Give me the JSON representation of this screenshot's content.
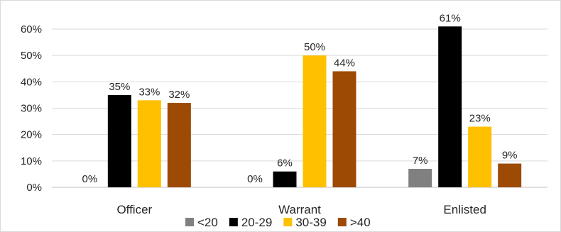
{
  "chart_data": {
    "type": "bar",
    "title": "",
    "xlabel": "",
    "ylabel": "",
    "categories": [
      "Officer",
      "Warrant",
      "Enlisted"
    ],
    "ylim": [
      0,
      60
    ],
    "yticks": [
      "0%",
      "10%",
      "20%",
      "30%",
      "40%",
      "50%",
      "60%"
    ],
    "grid": true,
    "legend_position": "bottom",
    "series": [
      {
        "name": "<20",
        "color": "#808080",
        "values": [
          0,
          0,
          7
        ],
        "labels": [
          "0%",
          "0%",
          "7%"
        ]
      },
      {
        "name": "20-29",
        "color": "#000000",
        "values": [
          35,
          6,
          61
        ],
        "labels": [
          "35%",
          "6%",
          "61%"
        ]
      },
      {
        "name": "30-39",
        "color": "#FFC000",
        "values": [
          33,
          50,
          23
        ],
        "labels": [
          "33%",
          "50%",
          "23%"
        ]
      },
      {
        "name": ">40",
        "color": "#9C4A04",
        "values": [
          32,
          44,
          9
        ],
        "labels": [
          "32%",
          "44%",
          "9%"
        ]
      }
    ]
  }
}
